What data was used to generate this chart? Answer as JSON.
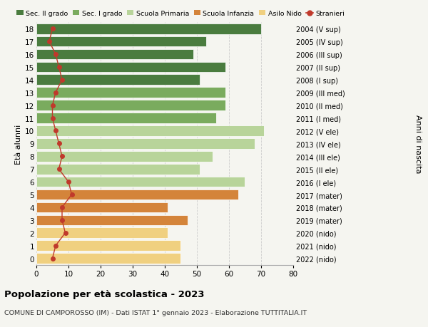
{
  "ages": [
    18,
    17,
    16,
    15,
    14,
    13,
    12,
    11,
    10,
    9,
    8,
    7,
    6,
    5,
    4,
    3,
    2,
    1,
    0
  ],
  "right_labels": [
    "2004 (V sup)",
    "2005 (IV sup)",
    "2006 (III sup)",
    "2007 (II sup)",
    "2008 (I sup)",
    "2009 (III med)",
    "2010 (II med)",
    "2011 (I med)",
    "2012 (V ele)",
    "2013 (IV ele)",
    "2014 (III ele)",
    "2015 (II ele)",
    "2016 (I ele)",
    "2017 (mater)",
    "2018 (mater)",
    "2019 (mater)",
    "2020 (nido)",
    "2021 (nido)",
    "2022 (nido)"
  ],
  "bar_values": [
    70,
    53,
    49,
    59,
    51,
    59,
    59,
    56,
    71,
    68,
    55,
    51,
    65,
    63,
    41,
    47,
    41,
    45,
    45
  ],
  "bar_colors": [
    "#4a7c3f",
    "#4a7c3f",
    "#4a7c3f",
    "#4a7c3f",
    "#4a7c3f",
    "#7aab5e",
    "#7aab5e",
    "#7aab5e",
    "#b8d49a",
    "#b8d49a",
    "#b8d49a",
    "#b8d49a",
    "#b8d49a",
    "#d4843a",
    "#d4843a",
    "#d4843a",
    "#f0d080",
    "#f0d080",
    "#f0d080"
  ],
  "stranieri_values": [
    5,
    4,
    6,
    7,
    8,
    6,
    5,
    5,
    6,
    7,
    8,
    7,
    10,
    11,
    8,
    8,
    9,
    6,
    5
  ],
  "legend_labels": [
    "Sec. II grado",
    "Sec. I grado",
    "Scuola Primaria",
    "Scuola Infanzia",
    "Asilo Nido",
    "Stranieri"
  ],
  "legend_colors": [
    "#4a7c3f",
    "#7aab5e",
    "#b8d49a",
    "#d4843a",
    "#f0d080",
    "#c0392b"
  ],
  "title": "Popolazione per età scolastica - 2023",
  "subtitle": "COMUNE DI CAMPOROSSO (IM) - Dati ISTAT 1° gennaio 2023 - Elaborazione TUTTITALIA.IT",
  "ylabel_left": "Età alunni",
  "ylabel_right": "Anni di nascita",
  "xlim": [
    0,
    80
  ],
  "xticks": [
    0,
    10,
    20,
    30,
    40,
    50,
    60,
    70,
    80
  ],
  "bg_color": "#f5f5f0",
  "stranieri_color": "#c0392b",
  "grid_color": "#cccccc",
  "bar_height": 0.82
}
